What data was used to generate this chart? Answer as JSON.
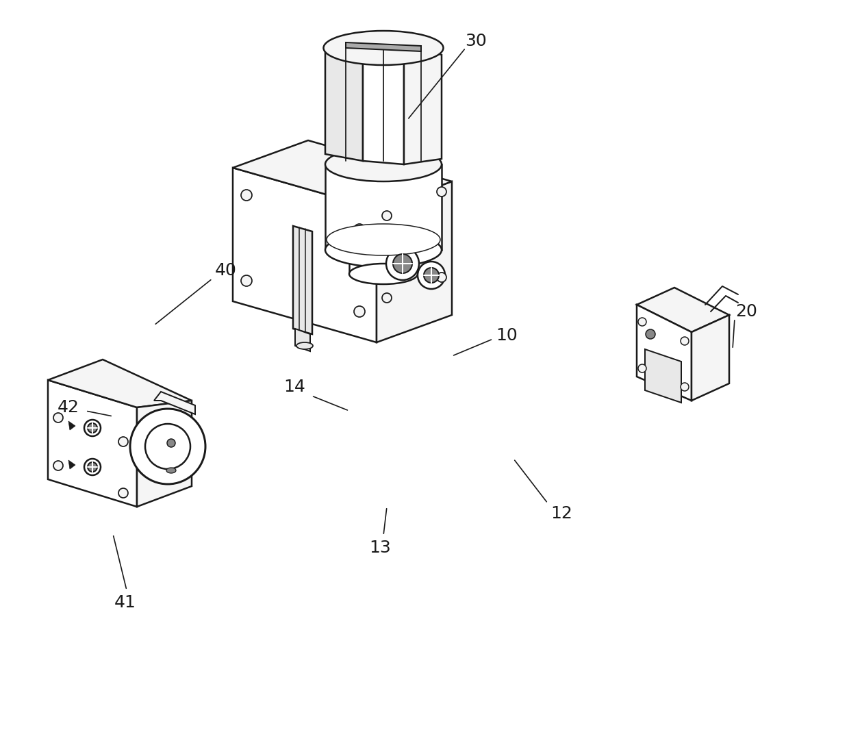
{
  "background_color": "#ffffff",
  "line_color": "#1a1a1a",
  "fill_white": "#ffffff",
  "fill_light": "#f5f5f5",
  "fill_mid": "#e8e8e8",
  "fill_dark": "#cccccc",
  "fill_darker": "#aaaaaa",
  "fill_shadow": "#888888",
  "lw_main": 1.8,
  "lw_thin": 1.0,
  "label_fontsize": 18,
  "figsize": [
    12.4,
    10.88
  ],
  "dpi": 100
}
